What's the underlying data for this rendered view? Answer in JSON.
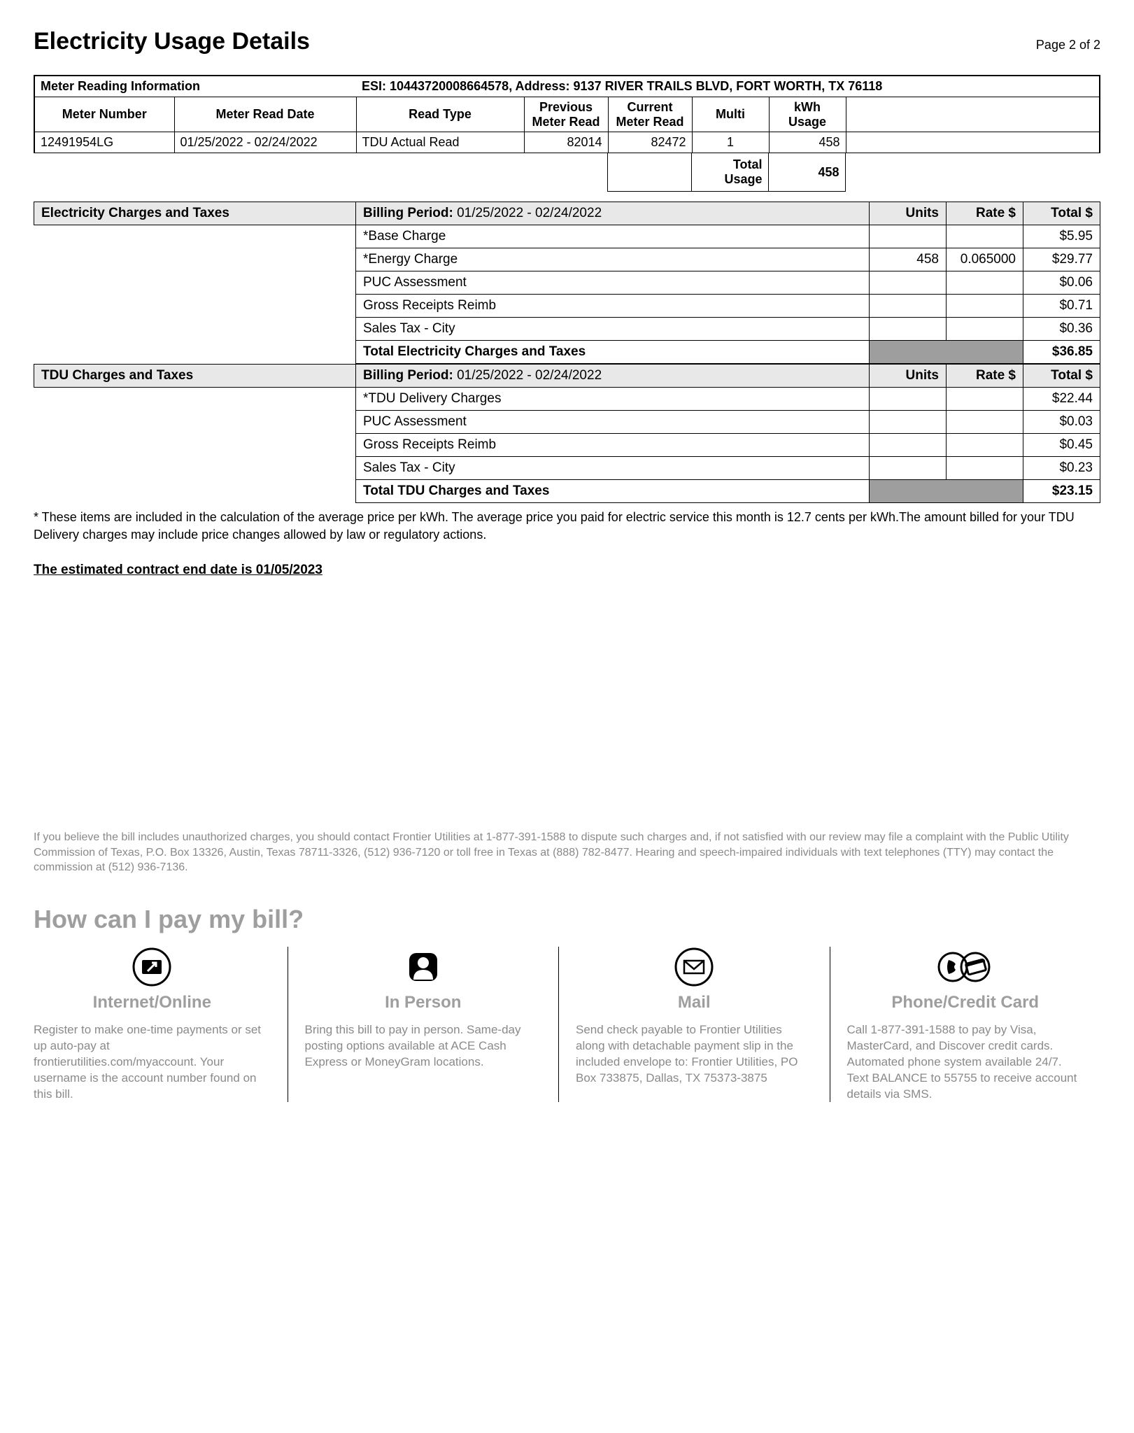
{
  "page": {
    "title": "Electricity Usage Details",
    "page_label": "Page 2 of 2"
  },
  "meter": {
    "section_title": "Meter Reading Information",
    "esi_label": "ESI: 10443720008664578, Address: 9137 RIVER TRAILS BLVD, FORT WORTH, TX 76118",
    "headers": {
      "meter_number": "Meter Number",
      "read_date": "Meter Read Date",
      "read_type": "Read Type",
      "prev": "Previous Meter Read",
      "curr": "Current Meter Read",
      "multi": "Multi",
      "usage": "kWh Usage"
    },
    "row": {
      "meter_number": "12491954LG",
      "read_date": "01/25/2022 - 02/24/2022",
      "read_type": "TDU Actual Read",
      "prev": "82014",
      "curr": "82472",
      "multi": "1",
      "usage": "458"
    },
    "total_label": "Total Usage",
    "total_value": "458"
  },
  "elec": {
    "title": "Electricity Charges and Taxes",
    "billing_label": "Billing Period:",
    "billing_period": "01/25/2022 - 02/24/2022",
    "col_units": "Units",
    "col_rate": "Rate $",
    "col_total": "Total $",
    "rows": [
      {
        "desc": "*Base Charge",
        "units": "",
        "rate": "",
        "total": "$5.95"
      },
      {
        "desc": "*Energy Charge",
        "units": "458",
        "rate": "0.065000",
        "total": "$29.77"
      },
      {
        "desc": "PUC Assessment",
        "units": "",
        "rate": "",
        "total": "$0.06"
      },
      {
        "desc": "Gross Receipts Reimb",
        "units": "",
        "rate": "",
        "total": "$0.71"
      },
      {
        "desc": "Sales Tax - City",
        "units": "",
        "rate": "",
        "total": "$0.36"
      }
    ],
    "total_label": "Total Electricity Charges and Taxes",
    "total_value": "$36.85"
  },
  "tdu": {
    "title": "TDU Charges and Taxes",
    "billing_label": "Billing Period:",
    "billing_period": "01/25/2022 - 02/24/2022",
    "col_units": "Units",
    "col_rate": "Rate $",
    "col_total": "Total $",
    "rows": [
      {
        "desc": "*TDU Delivery Charges",
        "units": "",
        "rate": "",
        "total": "$22.44"
      },
      {
        "desc": "PUC Assessment",
        "units": "",
        "rate": "",
        "total": "$0.03"
      },
      {
        "desc": "Gross Receipts Reimb",
        "units": "",
        "rate": "",
        "total": "$0.45"
      },
      {
        "desc": "Sales Tax - City",
        "units": "",
        "rate": "",
        "total": "$0.23"
      }
    ],
    "total_label": "Total TDU Charges and Taxes",
    "total_value": "$23.15"
  },
  "footnote": "* These items are included in the calculation of the average price per kWh. The average price you paid for electric service this month is 12.7 cents per kWh.The amount billed for your TDU Delivery charges may include price changes allowed by law or regulatory actions.",
  "contract_end": "The estimated contract end date is 01/05/2023",
  "dispute": "If you believe the bill includes unauthorized charges, you should contact Frontier Utilities at 1-877-391-1588 to dispute such charges and, if not satisfied with our review may file a complaint with the Public Utility Commission of Texas, P.O. Box 13326, Austin, Texas 78711-3326, (512) 936-7120 or toll free in Texas at (888) 782-8477.  Hearing and speech-impaired individuals with text telephones (TTY) may contact the commission at (512) 936-7136.",
  "pay": {
    "heading": "How can I pay my bill?",
    "cols": [
      {
        "title": "Internet/Online",
        "body": "Register to make one-time payments or set up auto-pay at frontierutilities.com/myaccount. Your username is the account number found on this bill."
      },
      {
        "title": "In Person",
        "body": "Bring this bill to pay in person. Same-day posting options available at ACE Cash Express or MoneyGram locations."
      },
      {
        "title": "Mail",
        "body": "Send check payable to Frontier Utilities along with detachable payment slip in the included envelope to: Frontier Utilities, PO Box 733875, Dallas, TX 75373-3875"
      },
      {
        "title": "Phone/Credit Card",
        "body": "Call 1-877-391-1588 to pay by Visa, MasterCard, and Discover credit cards. Automated phone system available 24/7. Text BALANCE to 55755 to receive account details via SMS."
      }
    ]
  }
}
